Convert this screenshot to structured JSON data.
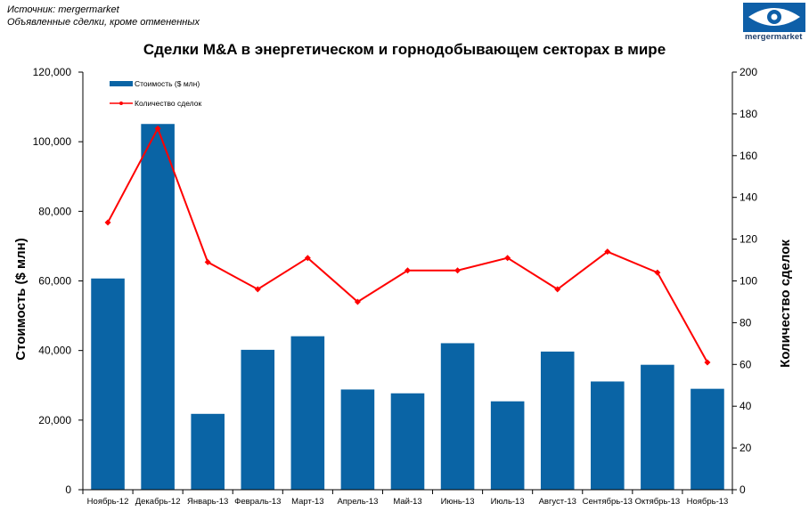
{
  "source": {
    "line1": "Источник: mergermarket",
    "line2": "Объявленные сделки, кроме отмененных"
  },
  "logo": {
    "text": "mergermarket",
    "icon": "eye-logo-icon"
  },
  "chart_data": {
    "type": "bar",
    "title": "Сделки M&A  в энергетическом и горнодобывающем секторах в мире",
    "categories": [
      "Ноябрь-12",
      "Декабрь-12",
      "Январь-13",
      "Февраль-13",
      "Март-13",
      "Апрель-13",
      "Май-13",
      "Июнь-13",
      "Июль-13",
      "Август-13",
      "Сентябрь-13",
      "Октябрь-13",
      "Ноябрь-13"
    ],
    "series": [
      {
        "name": "Стоимость ($ млн)",
        "type": "bar",
        "axis": "left",
        "values": [
          60700,
          105100,
          21800,
          40200,
          44100,
          28800,
          27700,
          42100,
          25400,
          39700,
          31100,
          35900,
          29000
        ]
      },
      {
        "name": "Количество сделок",
        "type": "line",
        "axis": "right",
        "values": [
          128,
          173,
          109,
          96,
          111,
          90,
          105,
          105,
          111,
          96,
          114,
          104,
          61
        ]
      }
    ],
    "ylabel": "Стоимость  ($ млн)",
    "y2label": "Количество сделок",
    "ylim": [
      0,
      120000
    ],
    "y2lim": [
      0,
      200
    ],
    "yticks": [
      "0",
      "20,000",
      "40,000",
      "60,000",
      "80,000",
      "100,000",
      "120,000"
    ],
    "y2ticks": [
      "0",
      "20",
      "40",
      "60",
      "80",
      "100",
      "120",
      "140",
      "160",
      "180",
      "200"
    ],
    "colors": {
      "bar": "#0a64a5",
      "line": "#ff0000"
    },
    "legend": "top-left",
    "grid": false
  }
}
